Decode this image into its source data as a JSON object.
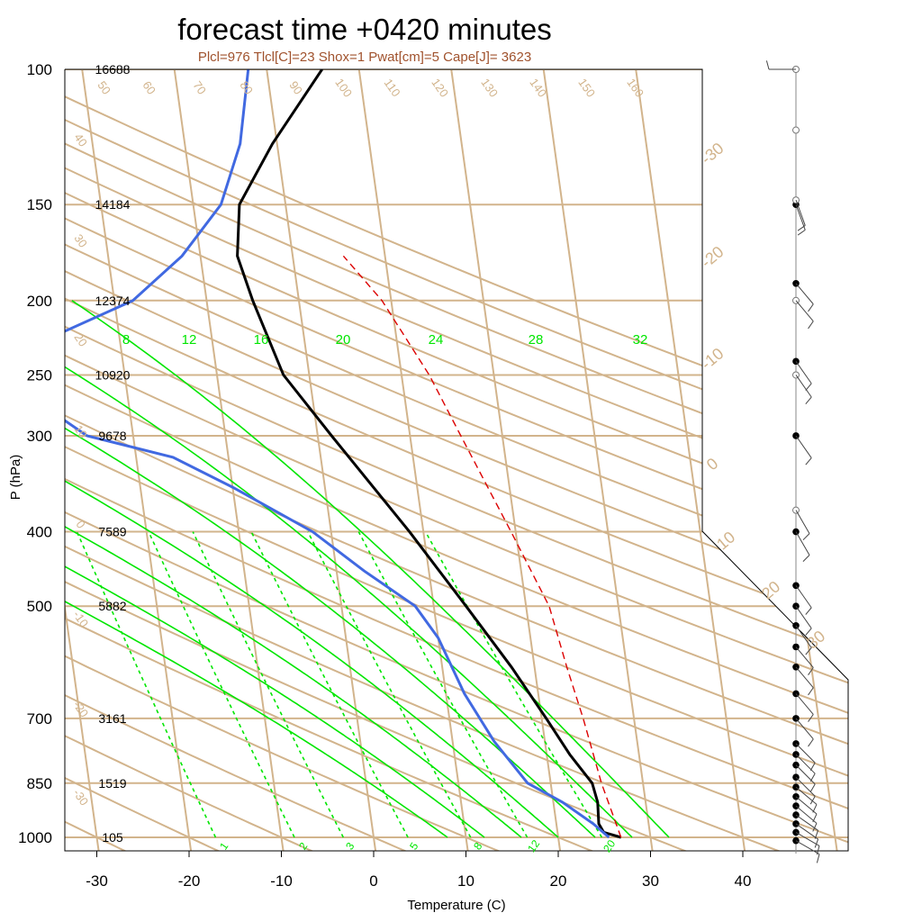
{
  "chart_data": {
    "type": "line",
    "title": "forecast time +0420 minutes",
    "subtitle": "Plcl=976 Tlcl[C]=23 Shox=1 Pwat[cm]=5 Cape[J]= 3623",
    "xlabel": "Temperature (C)",
    "ylabel": "P (hPa)",
    "x_ticks": [
      "-30",
      "-20",
      "-10",
      "0",
      "10",
      "20",
      "30",
      "40"
    ],
    "pressure_levels": [
      {
        "p": 100,
        "label": "100",
        "height": "16688"
      },
      {
        "p": 150,
        "label": "150",
        "height": "14184"
      },
      {
        "p": 200,
        "label": "200",
        "height": "12374"
      },
      {
        "p": 250,
        "label": "250",
        "height": "10920"
      },
      {
        "p": 300,
        "label": "300",
        "height": "9678"
      },
      {
        "p": 400,
        "label": "400",
        "height": "7589"
      },
      {
        "p": 500,
        "label": "500",
        "height": "5882"
      },
      {
        "p": 700,
        "label": "700",
        "height": "3161"
      },
      {
        "p": 850,
        "label": "850",
        "height": "1519"
      },
      {
        "p": 1000,
        "label": "1000",
        "height": "105"
      }
    ],
    "isotherm_labels": [
      "-30",
      "-20",
      "-10",
      "0",
      "10",
      "20",
      "30"
    ],
    "dry_adiabat_labels": [
      "50",
      "60",
      "70",
      "80",
      "90",
      "100",
      "110",
      "120",
      "130",
      "140",
      "150",
      "160",
      "40",
      "30",
      "20",
      "10",
      "0",
      "-10",
      "-20",
      "-30"
    ],
    "moist_adiabat_labels": [
      "8",
      "12",
      "16",
      "20",
      "24",
      "28",
      "32"
    ],
    "mixing_ratio_labels": [
      "1",
      "2",
      "3",
      "5",
      "8",
      "12",
      "20"
    ],
    "series": [
      {
        "name": "",
        "kind": "temperature",
        "color": "#000000",
        "points": [
          [
            26.8,
            1000
          ],
          [
            25,
            985
          ],
          [
            24.6,
            960
          ],
          [
            24.8,
            900
          ],
          [
            24.5,
            850
          ],
          [
            22.5,
            780
          ],
          [
            20.5,
            700
          ],
          [
            17.5,
            600
          ],
          [
            13.5,
            500
          ],
          [
            8.5,
            400
          ],
          [
            1.5,
            300
          ],
          [
            -2.8,
            250
          ],
          [
            -5,
            200
          ],
          [
            -6,
            175
          ],
          [
            -5,
            150
          ],
          [
            -0.5,
            125
          ],
          [
            6,
            100
          ]
        ]
      },
      {
        "name": "",
        "kind": "dewpoint",
        "color": "#4169e1",
        "points": [
          [
            25.5,
            1000
          ],
          [
            24,
            960
          ],
          [
            21,
            900
          ],
          [
            17.5,
            850
          ],
          [
            14.5,
            750
          ],
          [
            12,
            650
          ],
          [
            10,
            550
          ],
          [
            8,
            500
          ],
          [
            3,
            450
          ],
          [
            -2,
            400
          ],
          [
            -10,
            350
          ],
          [
            -16,
            320
          ],
          [
            -25,
            300
          ],
          [
            -30,
            270
          ],
          [
            -33,
            250
          ],
          [
            -28,
            225
          ],
          [
            -18,
            200
          ],
          [
            -12,
            175
          ],
          [
            -7,
            150
          ],
          [
            -4,
            125
          ],
          [
            -2,
            100
          ]
        ]
      },
      {
        "name": "",
        "kind": "parcel",
        "color": "#dc0000",
        "dashed": true,
        "points": [
          [
            26.8,
            1000
          ],
          [
            25.5,
            850
          ],
          [
            24.5,
            700
          ],
          [
            23.5,
            600
          ],
          [
            22.5,
            500
          ],
          [
            19.5,
            400
          ],
          [
            15.5,
            300
          ],
          [
            13,
            250
          ],
          [
            9,
            200
          ],
          [
            5.5,
            175
          ]
        ]
      }
    ],
    "wind_barbs": [
      {
        "p": 1010,
        "dir": 120,
        "kt": 10
      },
      {
        "p": 985,
        "dir": 120,
        "kt": 10
      },
      {
        "p": 960,
        "dir": 125,
        "kt": 10
      },
      {
        "p": 935,
        "dir": 125,
        "kt": 10
      },
      {
        "p": 910,
        "dir": 130,
        "kt": 10
      },
      {
        "p": 885,
        "dir": 130,
        "kt": 10
      },
      {
        "p": 860,
        "dir": 130,
        "kt": 10
      },
      {
        "p": 835,
        "dir": 135,
        "kt": 10
      },
      {
        "p": 805,
        "dir": 135,
        "kt": 10
      },
      {
        "p": 780,
        "dir": 135,
        "kt": 10
      },
      {
        "p": 755,
        "dir": 135,
        "kt": 10
      },
      {
        "p": 700,
        "dir": 140,
        "kt": 10
      },
      {
        "p": 650,
        "dir": 140,
        "kt": 10
      },
      {
        "p": 600,
        "dir": 140,
        "kt": 10
      },
      {
        "p": 565,
        "dir": 140,
        "kt": 10
      },
      {
        "p": 530,
        "dir": 145,
        "kt": 10
      },
      {
        "p": 500,
        "dir": 145,
        "kt": 10
      },
      {
        "p": 470,
        "dir": 145,
        "kt": 10
      },
      {
        "p": 400,
        "dir": 150,
        "kt": 10
      },
      {
        "p": 375,
        "dir": 150,
        "kt": 10
      },
      {
        "p": 300,
        "dir": 145,
        "kt": 10
      },
      {
        "p": 250,
        "dir": 145,
        "kt": 10
      },
      {
        "p": 240,
        "dir": 145,
        "kt": 10
      },
      {
        "p": 200,
        "dir": 140,
        "kt": 10
      },
      {
        "p": 190,
        "dir": 140,
        "kt": 10
      },
      {
        "p": 150,
        "dir": 160,
        "kt": 5
      },
      {
        "p": 148,
        "dir": 160,
        "kt": 5
      },
      {
        "p": 120,
        "dir": 180,
        "kt": 0
      },
      {
        "p": 100,
        "dir": 270,
        "kt": 10
      }
    ]
  }
}
